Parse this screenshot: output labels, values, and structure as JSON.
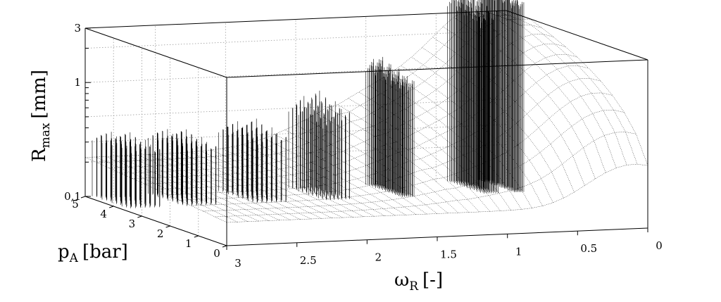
{
  "chart_data": {
    "type": "surface3d",
    "zlabel": {
      "main": "R",
      "sub": "max",
      "unit": "[mm]"
    },
    "ylabel": {
      "main": "p",
      "sub": "A",
      "unit": "[bar]"
    },
    "xlabel": {
      "main": "ω",
      "sub": "R",
      "unit": "[-]"
    },
    "z_scale": "log",
    "zlim": [
      0.1,
      3
    ],
    "z_ticks": [
      {
        "value": 0.1,
        "label": "0,1"
      },
      {
        "value": 1,
        "label": "1"
      },
      {
        "value": 3,
        "label": "3"
      }
    ],
    "ylim": [
      0,
      5
    ],
    "y_ticks": [
      {
        "value": 5,
        "label": "5"
      },
      {
        "value": 4,
        "label": "4"
      },
      {
        "value": 3,
        "label": "3"
      },
      {
        "value": 2,
        "label": "2"
      },
      {
        "value": 1,
        "label": "1"
      },
      {
        "value": 0,
        "label": "0"
      }
    ],
    "xlim": [
      0,
      3
    ],
    "x_ticks": [
      {
        "value": 3,
        "label": "3"
      },
      {
        "value": 2.5,
        "label": "2.5"
      },
      {
        "value": 2,
        "label": "2"
      },
      {
        "value": 1.5,
        "label": "1.5"
      },
      {
        "value": 1,
        "label": "1"
      },
      {
        "value": 0.5,
        "label": "0.5"
      },
      {
        "value": 0,
        "label": "0"
      }
    ],
    "grid": true,
    "colors": {
      "line": "#000000",
      "grid": "#9a9a9a",
      "background": "#ffffff"
    }
  }
}
